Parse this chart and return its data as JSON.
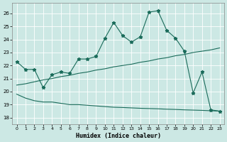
{
  "xlabel": "Humidex (Indice chaleur)",
  "bg_color": "#cce8e4",
  "line_color": "#1a6b5a",
  "grid_color": "#ffffff",
  "xlim": [
    -0.5,
    23.5
  ],
  "ylim": [
    17.5,
    26.8
  ],
  "yticks": [
    18,
    19,
    20,
    21,
    22,
    23,
    24,
    25,
    26
  ],
  "xticks": [
    0,
    1,
    2,
    3,
    4,
    5,
    6,
    7,
    8,
    9,
    10,
    11,
    12,
    13,
    14,
    15,
    16,
    17,
    18,
    19,
    20,
    21,
    22,
    23
  ],
  "series1_x": [
    0,
    1,
    2,
    3,
    4,
    5,
    6,
    7,
    8,
    9,
    10,
    11,
    12,
    13,
    14,
    15,
    16,
    17,
    18,
    19,
    20,
    21,
    22,
    23
  ],
  "series1_y": [
    22.3,
    21.7,
    21.7,
    20.3,
    21.3,
    21.5,
    21.4,
    22.5,
    22.5,
    22.7,
    24.1,
    25.3,
    24.3,
    23.8,
    24.2,
    26.1,
    26.2,
    24.7,
    24.1,
    23.1,
    19.9,
    21.5,
    18.6,
    18.5
  ],
  "series2_x": [
    0,
    1,
    2,
    3,
    4,
    5,
    6,
    7,
    8,
    9,
    10,
    11,
    12,
    13,
    14,
    15,
    16,
    17,
    18,
    19,
    20,
    21,
    22,
    23
  ],
  "series2_y": [
    20.5,
    20.6,
    20.75,
    20.9,
    21.0,
    21.15,
    21.25,
    21.4,
    21.5,
    21.65,
    21.75,
    21.9,
    22.0,
    22.1,
    22.25,
    22.35,
    22.5,
    22.6,
    22.75,
    22.85,
    23.0,
    23.1,
    23.2,
    23.35
  ],
  "series3_x": [
    0,
    1,
    2,
    3,
    4,
    5,
    6,
    7,
    8,
    9,
    10,
    11,
    12,
    13,
    14,
    15,
    16,
    17,
    18,
    19,
    20,
    21,
    22,
    23
  ],
  "series3_y": [
    19.8,
    19.5,
    19.3,
    19.2,
    19.2,
    19.1,
    19.0,
    19.0,
    18.95,
    18.9,
    18.85,
    18.8,
    18.78,
    18.75,
    18.72,
    18.7,
    18.68,
    18.65,
    18.63,
    18.6,
    18.58,
    18.56,
    18.53,
    18.5
  ]
}
